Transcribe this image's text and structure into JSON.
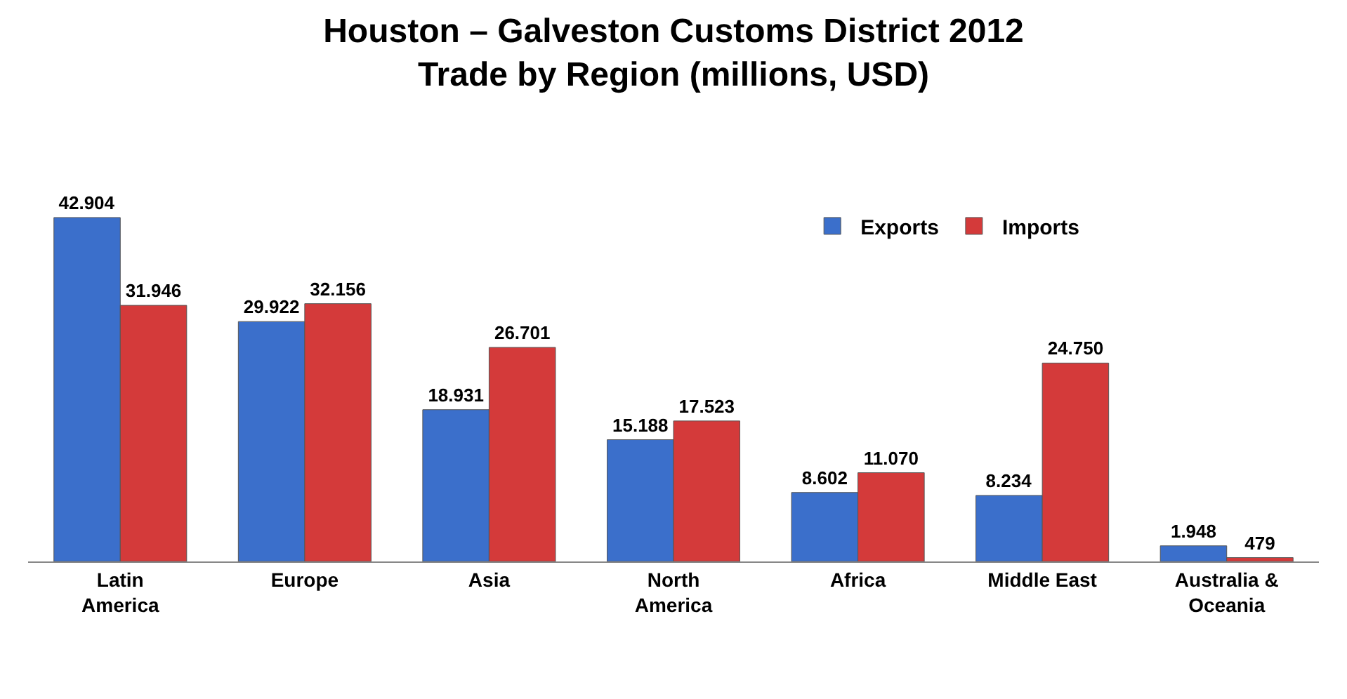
{
  "chart_data": {
    "type": "bar",
    "title": "Houston – Galveston Customs District 2012\nTrade by Region (millions, USD)",
    "categories": [
      "Latin\nAmerica",
      "Europe",
      "Asia",
      "North\nAmerica",
      "Africa",
      "Middle East",
      "Australia &\nOceania"
    ],
    "series": [
      {
        "name": "Exports",
        "color": "#3b6fcb",
        "values": [
          42904,
          29922,
          18931,
          15188,
          8602,
          8234,
          1948
        ],
        "value_labels": [
          "42.904",
          "29.922",
          "18.931",
          "15.188",
          "8.602",
          "8.234",
          "1.948"
        ]
      },
      {
        "name": "Imports",
        "color": "#d43a3a",
        "values": [
          31946,
          32156,
          26701,
          17523,
          11070,
          24750,
          479
        ],
        "value_labels": [
          "31.946",
          "32.156",
          "26.701",
          "17.523",
          "11.070",
          "24.750",
          "479"
        ]
      }
    ],
    "legend": "top right"
  }
}
